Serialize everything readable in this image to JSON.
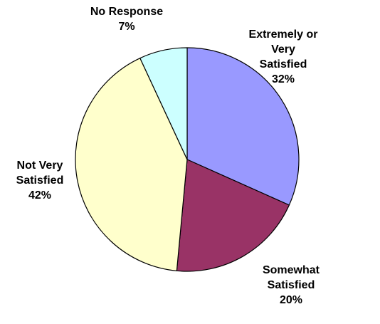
{
  "chart_data": {
    "type": "pie",
    "slices": [
      {
        "label_lines": [
          "Extremely or",
          "Very",
          "Satisfied"
        ],
        "percent_label": "32%",
        "value": 32,
        "color": "#9999ff"
      },
      {
        "label_lines": [
          "Somewhat",
          "Satisfied"
        ],
        "percent_label": "20%",
        "value": 20,
        "color": "#993366"
      },
      {
        "label_lines": [
          "Not Very",
          "Satisfied"
        ],
        "percent_label": "42%",
        "value": 42,
        "color": "#ffffcc"
      },
      {
        "label_lines": [
          "No Response"
        ],
        "percent_label": "7%",
        "value": 7,
        "color": "#ccffff"
      }
    ],
    "start_angle": "12 o'clock",
    "direction": "clockwise",
    "legend": "none"
  }
}
